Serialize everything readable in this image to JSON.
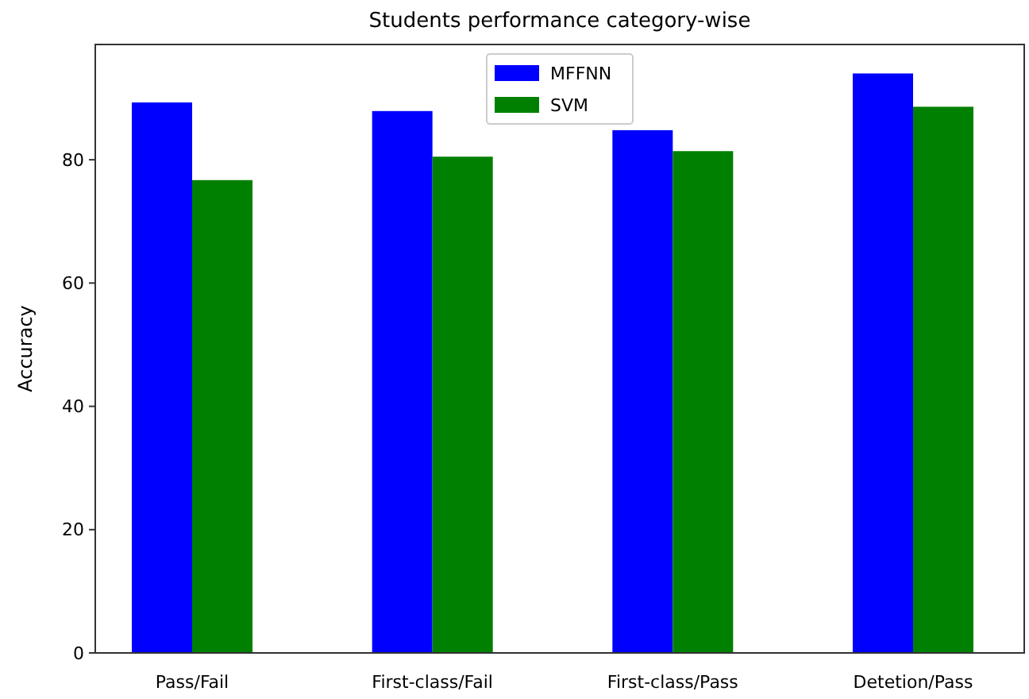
{
  "chart_data": {
    "type": "bar",
    "title": "Students performance category-wise",
    "ylabel": "Accuracy",
    "categories": [
      "Pass/Fail",
      "First-class/Fail",
      "First-class/Pass",
      "Detetion/Pass"
    ],
    "series": [
      {
        "name": "MFFNN",
        "color": "#0000ff",
        "values": [
          89.3,
          87.9,
          84.8,
          94.0
        ]
      },
      {
        "name": "SVM",
        "color": "#008000",
        "values": [
          76.7,
          80.5,
          81.4,
          88.6
        ]
      }
    ],
    "ylim": [
      0,
      98.7
    ],
    "yticks": [
      0,
      20,
      40,
      60,
      80
    ],
    "grid": false,
    "legend": "top"
  }
}
